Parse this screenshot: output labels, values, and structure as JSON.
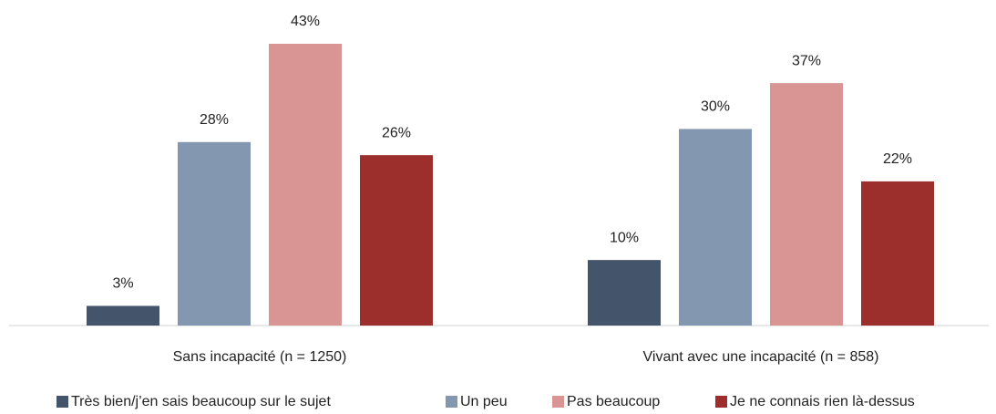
{
  "chart_data": {
    "type": "bar",
    "categories": [
      "Sans incapacité  (n = 1250)",
      "Vivant avec une incapacité  (n = 858)"
    ],
    "series": [
      {
        "name": "Très bien/j’en sais beaucoup sur le sujet",
        "color": "#44546a",
        "values": [
          3,
          10
        ],
        "value_labels": [
          "3%",
          "10%"
        ]
      },
      {
        "name": "Un peu",
        "color": "#8497b0",
        "values": [
          28,
          30
        ],
        "value_labels": [
          "28%",
          "30%"
        ]
      },
      {
        "name": "Pas beaucoup",
        "color": "#d99594",
        "values": [
          43,
          37
        ],
        "value_labels": [
          "43%",
          "37%"
        ]
      },
      {
        "name": "Je ne connais rien là-dessus",
        "color": "#9c2f2b",
        "values": [
          26,
          22
        ],
        "value_labels": [
          "26%",
          "22%"
        ]
      }
    ],
    "legend": "bottom"
  }
}
